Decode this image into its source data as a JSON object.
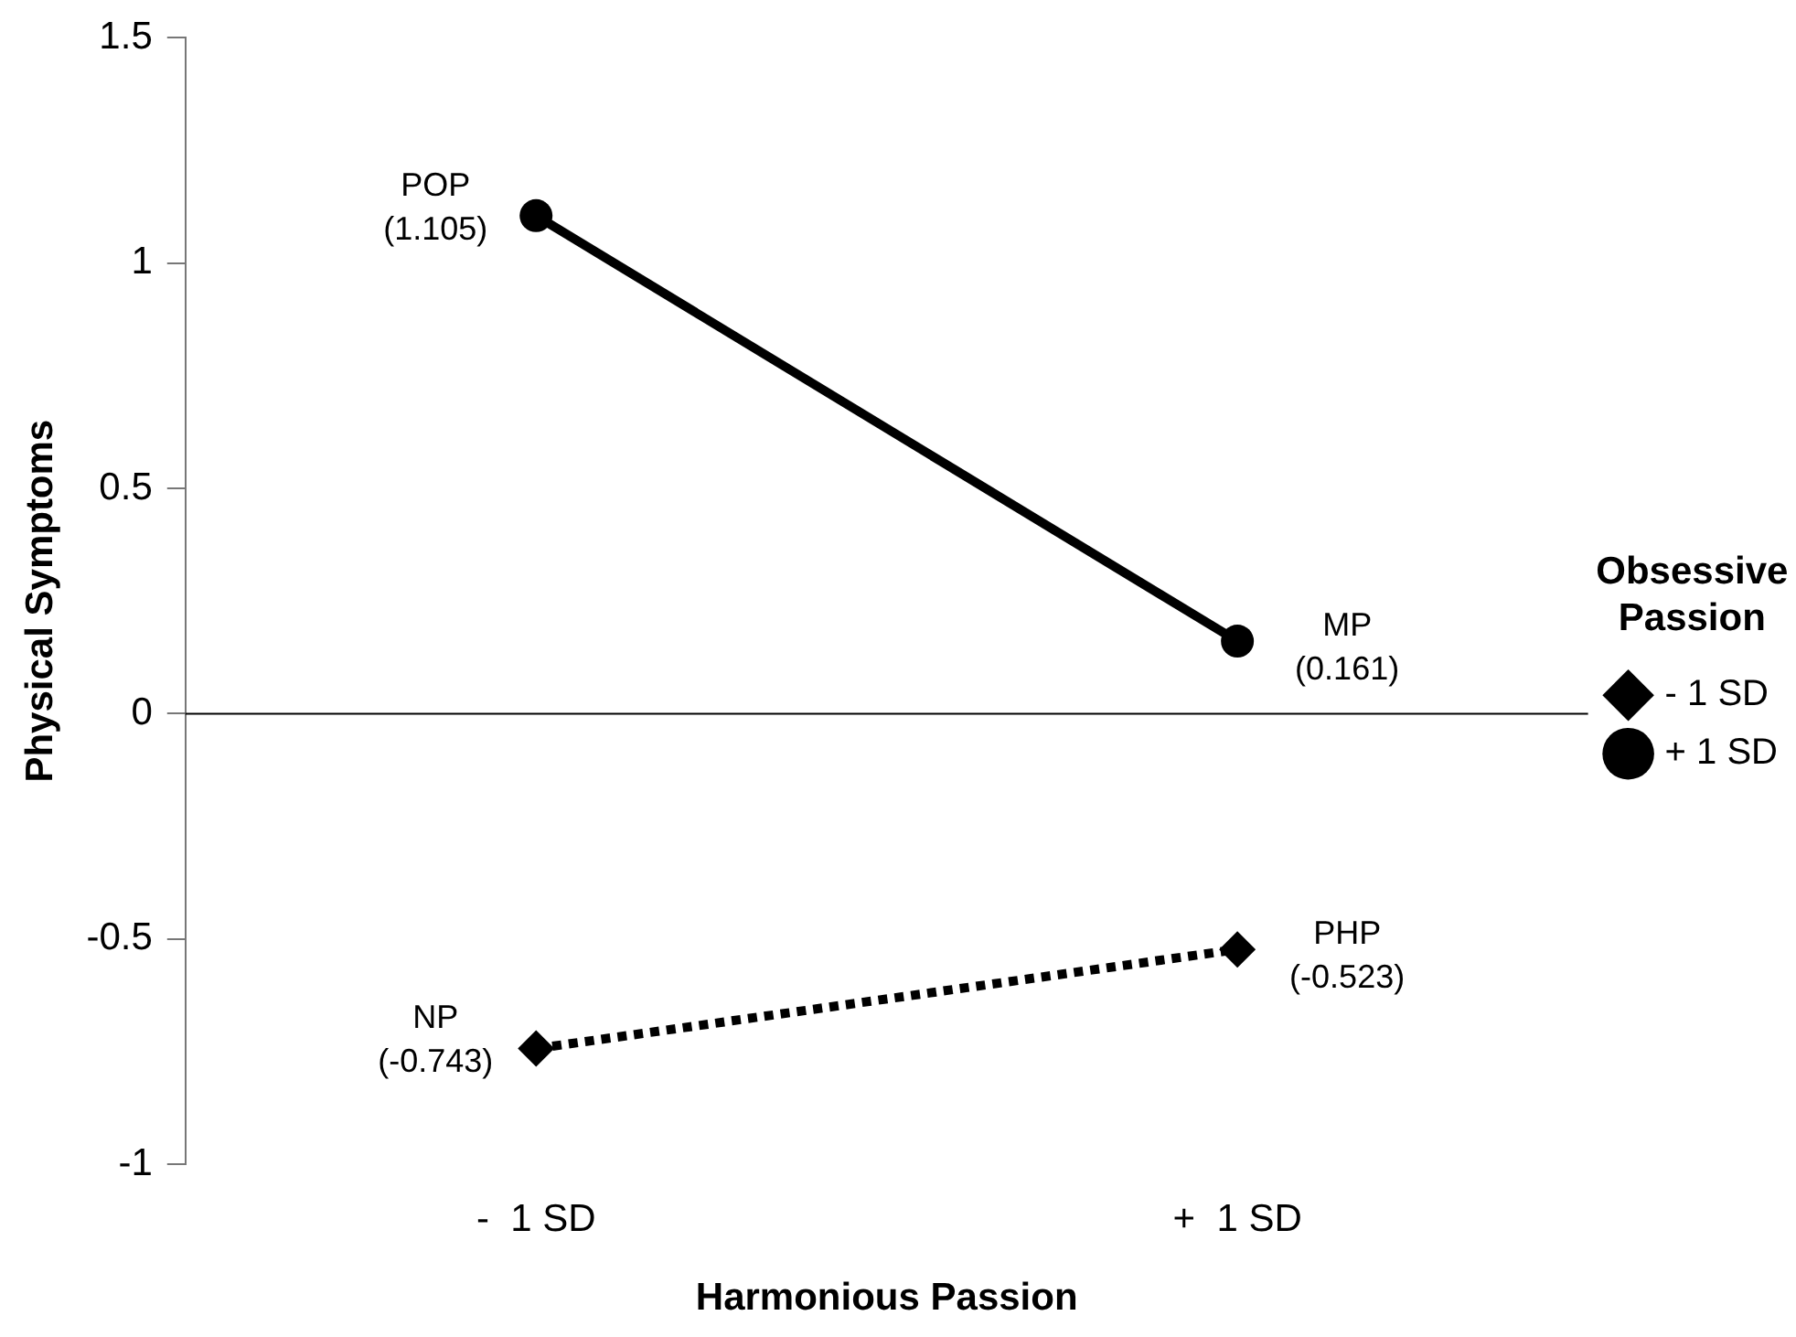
{
  "chart_data": {
    "type": "line",
    "xlabel": "Harmonious Passion",
    "ylabel": "Physical Symptoms",
    "legend_title": "Obsessive Passion",
    "categories": [
      "-  1 SD",
      "+  1 SD"
    ],
    "series": [
      {
        "name": "- 1 SD",
        "color": "#000000",
        "values": [
          -0.743,
          -0.523
        ],
        "marker": "diamond",
        "line_style": "dotted"
      },
      {
        "name": "+ 1 SD",
        "color": "#000000",
        "values": [
          1.105,
          0.161
        ],
        "marker": "circle",
        "line_style": "solid"
      }
    ],
    "ylim": [
      -1,
      1.5
    ],
    "yticks": [
      -1,
      -0.5,
      0,
      0.5,
      1,
      1.5
    ],
    "ref_lines": [
      {
        "axis": "y",
        "value": 0,
        "color": "#000000"
      }
    ],
    "annotations": [
      {
        "text": "POP\n(1.105)",
        "x": "-  1 SD",
        "y": 1.105
      },
      {
        "text": "MP\n(0.161)",
        "x": "+  1 SD",
        "y": 0.161
      },
      {
        "text": "NP\n(-0.743)",
        "x": "-  1 SD",
        "y": -0.743
      },
      {
        "text": "PHP\n(-0.523)",
        "x": "+  1 SD",
        "y": -0.523
      }
    ],
    "grid": false,
    "legend": "right"
  }
}
